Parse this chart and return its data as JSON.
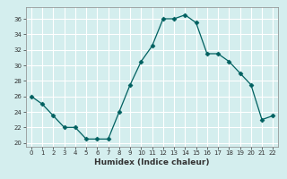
{
  "x": [
    0,
    1,
    2,
    3,
    4,
    5,
    6,
    7,
    8,
    9,
    10,
    11,
    12,
    13,
    14,
    15,
    16,
    17,
    18,
    19,
    20,
    21,
    22
  ],
  "y": [
    26,
    25,
    23.5,
    22,
    22,
    20.5,
    20.5,
    20.5,
    24,
    27.5,
    30.5,
    32.5,
    36,
    36,
    36.5,
    35.5,
    31.5,
    31.5,
    30.5,
    29,
    27.5,
    23,
    23.5
  ],
  "xlabel": "Humidex (Indice chaleur)",
  "ylabel": "",
  "xlim": [
    -0.5,
    22.5
  ],
  "ylim": [
    19.5,
    37.5
  ],
  "yticks": [
    20,
    22,
    24,
    26,
    28,
    30,
    32,
    34,
    36
  ],
  "xticks": [
    0,
    1,
    2,
    3,
    4,
    5,
    6,
    7,
    8,
    9,
    10,
    11,
    12,
    13,
    14,
    15,
    16,
    17,
    18,
    19,
    20,
    21,
    22
  ],
  "line_color": "#006060",
  "marker": "D",
  "marker_size": 2.5,
  "bg_color": "#d4eeee",
  "grid_color": "#ffffff",
  "tick_color": "#333333",
  "label_fontsize": 6.5,
  "tick_fontsize": 5.0
}
